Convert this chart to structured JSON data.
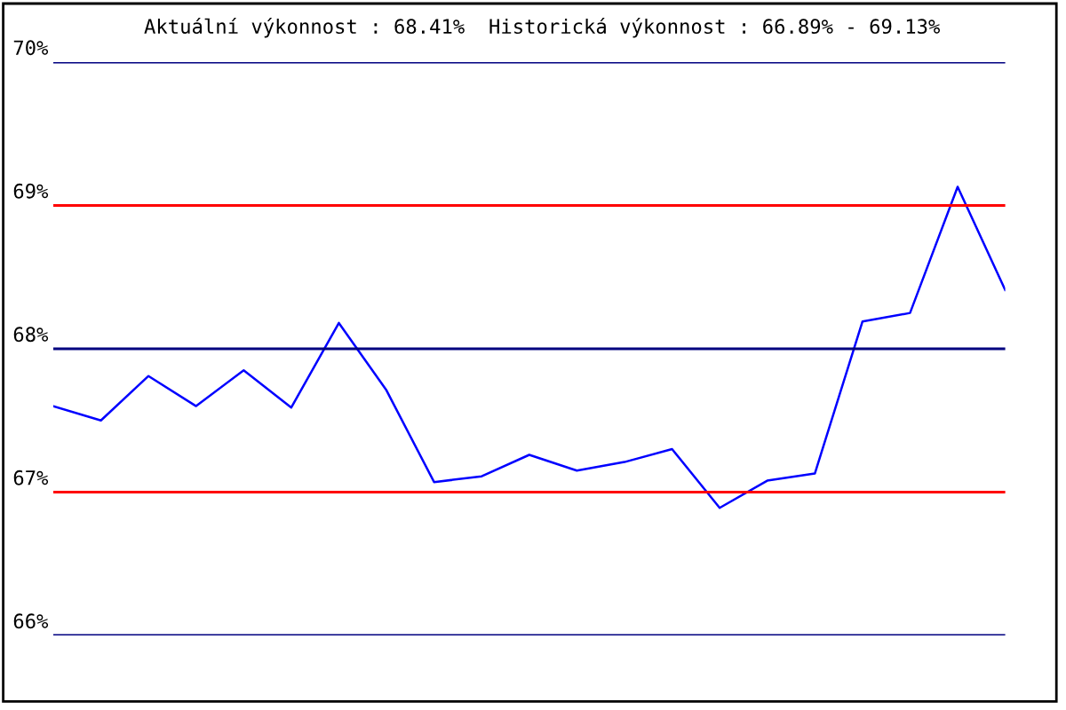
{
  "chart_data": {
    "type": "line",
    "title": "Aktuální výkonnost : 68.41%  Historická výkonnost : 66.89% - 69.13%",
    "categories": [
      null,
      null,
      null,
      null,
      null,
      null,
      null,
      null,
      null,
      null,
      null,
      null,
      null,
      null,
      null,
      null,
      null,
      null,
      null,
      null,
      null
    ],
    "series": [
      {
        "color": "#0000ff",
        "values": [
          67.6,
          67.5,
          67.81,
          67.6,
          67.85,
          67.59,
          68.18,
          67.71,
          67.07,
          67.11,
          67.26,
          67.15,
          67.21,
          67.3,
          66.89,
          67.08,
          67.13,
          68.19,
          68.25,
          69.13,
          68.41
        ]
      }
    ],
    "ylim": [
      66,
      70
    ],
    "yticks": [
      {
        "value": 66,
        "label": "66%"
      },
      {
        "value": 67,
        "label": "67%"
      },
      {
        "value": 68,
        "label": "68%"
      },
      {
        "value": 69,
        "label": "69%"
      },
      {
        "value": 70,
        "label": "70%"
      }
    ],
    "ref_lines": [
      {
        "axis": "y",
        "value": 66,
        "color": "#000080"
      },
      {
        "axis": "y",
        "value": 67,
        "color": "#ff0000"
      },
      {
        "axis": "y",
        "value": 68,
        "color": "#000080"
      },
      {
        "axis": "y",
        "value": 69,
        "color": "#ff0000"
      },
      {
        "axis": "y",
        "value": 70,
        "color": "#000080"
      }
    ],
    "tick_labels": "y"
  }
}
